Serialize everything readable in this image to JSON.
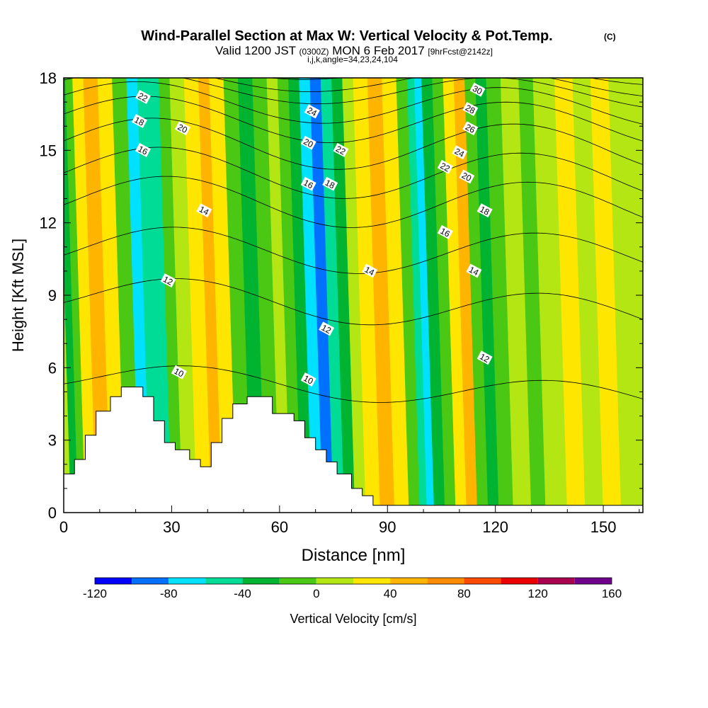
{
  "chart_data": {
    "type": "heatmap",
    "title": "Wind-Parallel Section at Max W: Vertical Velocity & Pot.Temp.",
    "title_mark": "(C)",
    "subtitle_a": "Valid 1200 JST",
    "subtitle_b": "(0300Z)",
    "subtitle_c": "MON 6 Feb 2017",
    "subtitle_d": "[9hrFcst@2142z]",
    "subtitle2": "i,j,k,angle=34,23,24,104",
    "xlabel": "Distance [nm]",
    "ylabel": "Height [Kft MSL]",
    "xlim": [
      0,
      161
    ],
    "ylim": [
      0,
      18
    ],
    "xticks": [
      "0",
      "30",
      "60",
      "90",
      "120",
      "150"
    ],
    "xtick_values": [
      0,
      30,
      60,
      90,
      120,
      150
    ],
    "yticks": [
      "0",
      "3",
      "6",
      "9",
      "12",
      "15",
      "18"
    ],
    "ytick_values": [
      0,
      3,
      6,
      9,
      12,
      15,
      18
    ],
    "colorbar": {
      "label": "Vertical Velocity [cm/s]",
      "min": -120,
      "max": 160,
      "step": 20,
      "tick_labels": [
        "-120",
        "-80",
        "-40",
        "0",
        "40",
        "80",
        "120",
        "160"
      ],
      "tick_values": [
        -120,
        -80,
        -40,
        0,
        40,
        80,
        120,
        160
      ],
      "colors": [
        "#0000ff",
        "#0070ff",
        "#00e0ff",
        "#00dc96",
        "#00b432",
        "#4bc814",
        "#b4e614",
        "#ffe600",
        "#ffb400",
        "#ff8c00",
        "#ff4b00",
        "#eb0000",
        "#aa0050",
        "#6e008c"
      ]
    },
    "velocity_bands": [
      {
        "x": 0,
        "w": 0
      },
      {
        "x": 2,
        "w": -40
      },
      {
        "x": 4,
        "w": -20
      },
      {
        "x": 6,
        "w": 20
      },
      {
        "x": 9,
        "w": 40
      },
      {
        "x": 13,
        "w": 20
      },
      {
        "x": 17,
        "w": -20
      },
      {
        "x": 21,
        "w": -80
      },
      {
        "x": 24,
        "w": -60
      },
      {
        "x": 27,
        "w": -60
      },
      {
        "x": 30,
        "w": -20
      },
      {
        "x": 33,
        "w": 0
      },
      {
        "x": 37,
        "w": 20
      },
      {
        "x": 41,
        "w": 40
      },
      {
        "x": 44,
        "w": 20
      },
      {
        "x": 48,
        "w": -20
      },
      {
        "x": 52,
        "w": -40
      },
      {
        "x": 56,
        "w": -20
      },
      {
        "x": 60,
        "w": 0
      },
      {
        "x": 63,
        "w": -20
      },
      {
        "x": 66,
        "w": -40
      },
      {
        "x": 69,
        "w": -80
      },
      {
        "x": 72,
        "w": -100
      },
      {
        "x": 75,
        "w": -60
      },
      {
        "x": 78,
        "w": -40
      },
      {
        "x": 81,
        "w": 0
      },
      {
        "x": 84,
        "w": 20
      },
      {
        "x": 88,
        "w": 40
      },
      {
        "x": 92,
        "w": 20
      },
      {
        "x": 96,
        "w": -20
      },
      {
        "x": 99,
        "w": -60
      },
      {
        "x": 101,
        "w": -80
      },
      {
        "x": 103,
        "w": -40
      },
      {
        "x": 106,
        "w": -20
      },
      {
        "x": 109,
        "w": 20
      },
      {
        "x": 112,
        "w": 40
      },
      {
        "x": 115,
        "w": -20
      },
      {
        "x": 118,
        "w": -40
      },
      {
        "x": 121,
        "w": -20
      },
      {
        "x": 125,
        "w": 0
      },
      {
        "x": 130,
        "w": -20
      },
      {
        "x": 134,
        "w": 0
      },
      {
        "x": 140,
        "w": 20
      },
      {
        "x": 145,
        "w": 0
      },
      {
        "x": 150,
        "w": 20
      },
      {
        "x": 155,
        "w": 0
      },
      {
        "x": 161,
        "w": 0
      }
    ],
    "terrain": [
      [
        0,
        1.6
      ],
      [
        3,
        1.6
      ],
      [
        3,
        2.2
      ],
      [
        6,
        2.2
      ],
      [
        6,
        3.2
      ],
      [
        9,
        3.2
      ],
      [
        9,
        4.2
      ],
      [
        13,
        4.2
      ],
      [
        13,
        4.8
      ],
      [
        16,
        4.8
      ],
      [
        16,
        5.2
      ],
      [
        22,
        5.2
      ],
      [
        22,
        4.8
      ],
      [
        25,
        4.8
      ],
      [
        25,
        3.8
      ],
      [
        28,
        3.8
      ],
      [
        28,
        2.9
      ],
      [
        31,
        2.9
      ],
      [
        31,
        2.6
      ],
      [
        35,
        2.6
      ],
      [
        35,
        2.2
      ],
      [
        38,
        2.2
      ],
      [
        38,
        1.9
      ],
      [
        41,
        1.9
      ],
      [
        41,
        2.9
      ],
      [
        44,
        2.9
      ],
      [
        44,
        3.9
      ],
      [
        47,
        3.9
      ],
      [
        47,
        4.5
      ],
      [
        51,
        4.5
      ],
      [
        51,
        4.8
      ],
      [
        58,
        4.8
      ],
      [
        58,
        4.1
      ],
      [
        64,
        4.1
      ],
      [
        64,
        3.8
      ],
      [
        67,
        3.8
      ],
      [
        67,
        3.1
      ],
      [
        70,
        3.1
      ],
      [
        70,
        2.6
      ],
      [
        73,
        2.6
      ],
      [
        73,
        2.1
      ],
      [
        76,
        2.1
      ],
      [
        76,
        1.6
      ],
      [
        80,
        1.6
      ],
      [
        80,
        1.0
      ],
      [
        83,
        1.0
      ],
      [
        83,
        0.7
      ],
      [
        86,
        0.7
      ],
      [
        86,
        0.3
      ],
      [
        161,
        0.3
      ]
    ],
    "isentropes": [
      {
        "theta": "10",
        "base": 5.2,
        "amp": 0.6
      },
      {
        "theta": "12",
        "base": 8.6,
        "amp": 0.8
      },
      {
        "theta": "14",
        "base": 10.8,
        "amp": 0.9
      },
      {
        "theta": "16",
        "base": 12.8,
        "amp": 1.0
      },
      {
        "theta": "18",
        "base": 14.0,
        "amp": 1.0
      },
      {
        "theta": "20",
        "base": 15.2,
        "amp": 1.0
      },
      {
        "theta": "22",
        "base": 16.2,
        "amp": 0.9
      },
      {
        "theta": "24",
        "base": 16.9,
        "amp": 0.8
      },
      {
        "theta": "26",
        "base": 17.5,
        "amp": 0.6
      },
      {
        "theta": "28",
        "base": 17.9,
        "amp": 0.5
      },
      {
        "theta": "30",
        "base": 18.3,
        "amp": 0.4
      }
    ],
    "contour_labels": [
      {
        "text": "22",
        "x": 22,
        "y": 17.2
      },
      {
        "text": "18",
        "x": 21,
        "y": 16.2
      },
      {
        "text": "20",
        "x": 33,
        "y": 15.9
      },
      {
        "text": "16",
        "x": 22,
        "y": 15.0
      },
      {
        "text": "14",
        "x": 39,
        "y": 12.5
      },
      {
        "text": "12",
        "x": 29,
        "y": 9.6
      },
      {
        "text": "10",
        "x": 32,
        "y": 5.8
      },
      {
        "text": "24",
        "x": 69,
        "y": 16.6
      },
      {
        "text": "20",
        "x": 68,
        "y": 15.3
      },
      {
        "text": "22",
        "x": 77,
        "y": 15.0
      },
      {
        "text": "16",
        "x": 68,
        "y": 13.6
      },
      {
        "text": "18",
        "x": 74,
        "y": 13.6
      },
      {
        "text": "14",
        "x": 85,
        "y": 10.0
      },
      {
        "text": "12",
        "x": 73,
        "y": 7.6
      },
      {
        "text": "10",
        "x": 68,
        "y": 5.5
      },
      {
        "text": "30",
        "x": 115,
        "y": 17.5
      },
      {
        "text": "28",
        "x": 113,
        "y": 16.7
      },
      {
        "text": "26",
        "x": 113,
        "y": 15.9
      },
      {
        "text": "24",
        "x": 110,
        "y": 14.9
      },
      {
        "text": "22",
        "x": 106,
        "y": 14.3
      },
      {
        "text": "20",
        "x": 112,
        "y": 13.9
      },
      {
        "text": "18",
        "x": 117,
        "y": 12.5
      },
      {
        "text": "16",
        "x": 106,
        "y": 11.6
      },
      {
        "text": "14",
        "x": 114,
        "y": 10.0
      },
      {
        "text": "12",
        "x": 117,
        "y": 6.4
      }
    ]
  }
}
